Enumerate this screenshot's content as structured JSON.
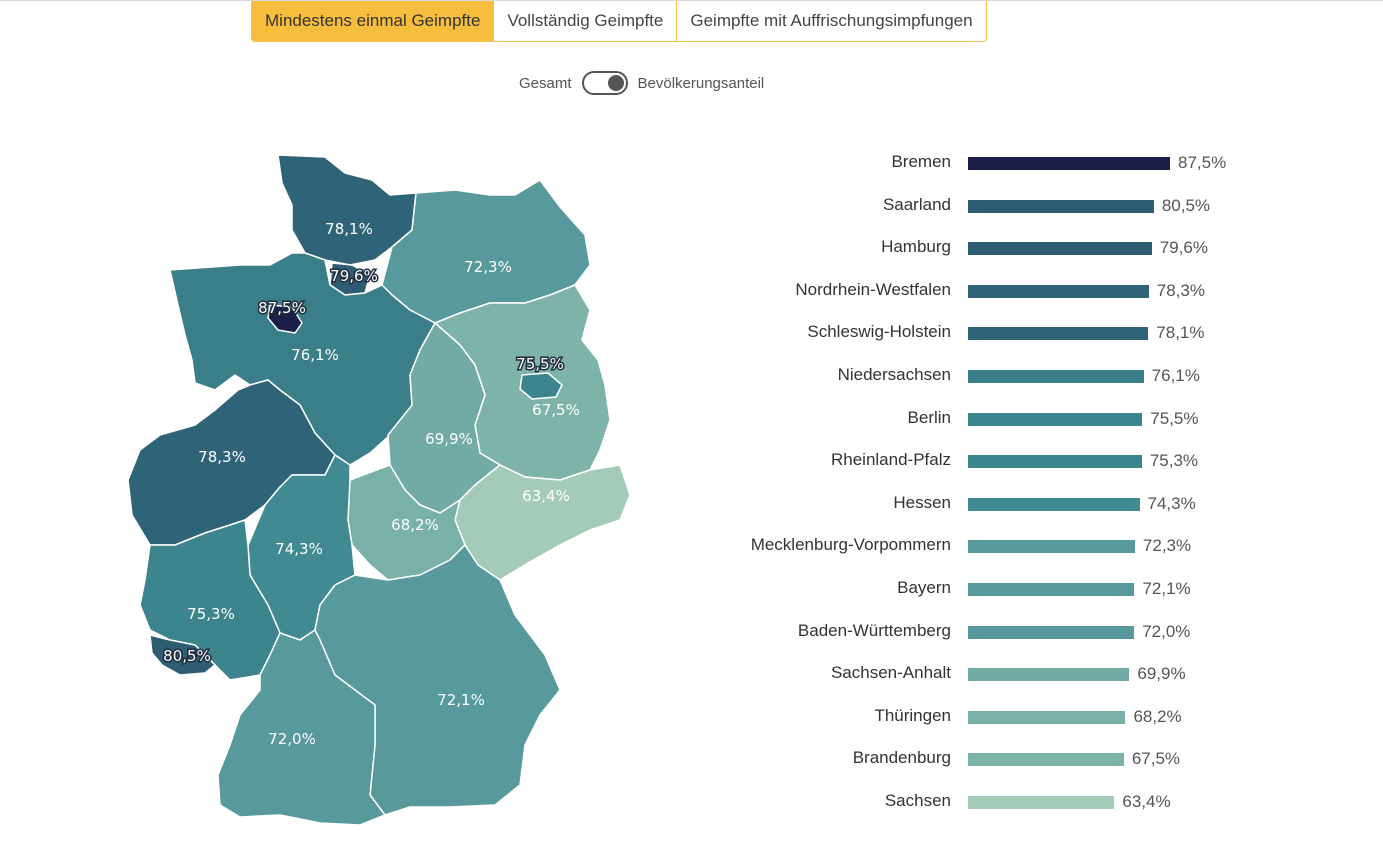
{
  "tabs": [
    {
      "label": "Mindestens einmal Geimpfte",
      "active": true
    },
    {
      "label": "Vollständig Geimpfte",
      "active": false
    },
    {
      "label": "Geimpfte mit Auffrischungsimpfungen",
      "active": false
    }
  ],
  "toggle": {
    "left_label": "Gesamt",
    "right_label": "Bevölkerungsanteil",
    "state": "Bevölkerungsanteil"
  },
  "colors": {
    "accent": "#f6be3c",
    "darkest": "#1b1f47",
    "lightest": "#a3cbb8"
  },
  "chart_data": {
    "type": "bar",
    "orientation": "horizontal",
    "categories": [
      "Bremen",
      "Saarland",
      "Hamburg",
      "Nordrhein-Westfalen",
      "Schleswig-Holstein",
      "Niedersachsen",
      "Berlin",
      "Rheinland-Pfalz",
      "Hessen",
      "Mecklenburg-Vorpommern",
      "Bayern",
      "Baden-Württemberg",
      "Sachsen-Anhalt",
      "Thüringen",
      "Brandenburg",
      "Sachsen"
    ],
    "values": [
      87.5,
      80.5,
      79.6,
      78.3,
      78.1,
      76.1,
      75.5,
      75.3,
      74.3,
      72.3,
      72.1,
      72.0,
      69.9,
      68.2,
      67.5,
      63.4
    ],
    "value_labels": [
      "87,5%",
      "80,5%",
      "79,6%",
      "78,3%",
      "78,1%",
      "76,1%",
      "75,5%",
      "75,3%",
      "74,3%",
      "72,3%",
      "72,1%",
      "72,0%",
      "69,9%",
      "68,2%",
      "67,5%",
      "63,4%"
    ],
    "bar_colors": [
      "#1b1f47",
      "#2e5c72",
      "#2e5c72",
      "#2f6478",
      "#2f6478",
      "#3a7e88",
      "#3d858d",
      "#3d858d",
      "#418a91",
      "#58999b",
      "#58999b",
      "#58999b",
      "#72aaa5",
      "#79b0a8",
      "#7eb3aa",
      "#a3cbb8"
    ]
  },
  "map": {
    "regions": [
      {
        "name": "Schleswig-Holstein",
        "label": "78,1%",
        "color": "#2f6478"
      },
      {
        "name": "Hamburg",
        "label": "79,6%",
        "color": "#2e5c72"
      },
      {
        "name": "Bremen",
        "label": "87,5%",
        "color": "#1b1f47"
      },
      {
        "name": "Mecklenburg-Vorpommern",
        "label": "72,3%",
        "color": "#58999b"
      },
      {
        "name": "Niedersachsen",
        "label": "76,1%",
        "color": "#3a7e88"
      },
      {
        "name": "Berlin",
        "label": "75,5%",
        "color": "#3d858d"
      },
      {
        "name": "Brandenburg",
        "label": "67,5%",
        "color": "#7eb3aa"
      },
      {
        "name": "Sachsen-Anhalt",
        "label": "69,9%",
        "color": "#72aaa5"
      },
      {
        "name": "Nordrhein-Westfalen",
        "label": "78,3%",
        "color": "#2f6478"
      },
      {
        "name": "Sachsen",
        "label": "63,4%",
        "color": "#a3cbb8"
      },
      {
        "name": "Thüringen",
        "label": "68,2%",
        "color": "#79b0a8"
      },
      {
        "name": "Hessen",
        "label": "74,3%",
        "color": "#418a91"
      },
      {
        "name": "Rheinland-Pfalz",
        "label": "75,3%",
        "color": "#3d858d"
      },
      {
        "name": "Saarland",
        "label": "80,5%",
        "color": "#2e5c72"
      },
      {
        "name": "Bayern",
        "label": "72,1%",
        "color": "#58999b"
      },
      {
        "name": "Baden-Württemberg",
        "label": "72,0%",
        "color": "#58999b"
      }
    ]
  }
}
